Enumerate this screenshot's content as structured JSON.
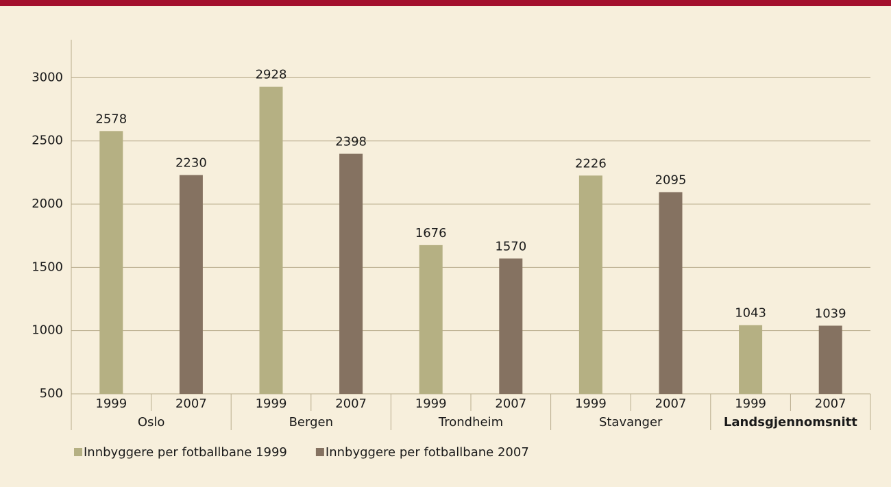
{
  "chart_data": {
    "type": "bar",
    "categories": [
      "Oslo",
      "Bergen",
      "Trondheim",
      "Stavanger",
      "Landsgjennomsnitt"
    ],
    "bold_category_index": 4,
    "series": [
      {
        "name": "Innbyggere per fotballbane 1999",
        "x_label": "1999",
        "color": "#b5b083",
        "values": [
          2578,
          2928,
          1676,
          2226,
          1043
        ]
      },
      {
        "name": "Innbyggere per fotballbane 2007",
        "x_label": "2007",
        "color": "#857261",
        "values": [
          2230,
          2398,
          1570,
          2095,
          1039
        ]
      }
    ],
    "ylim": [
      500,
      3300
    ],
    "yticks": [
      500,
      1000,
      1500,
      2000,
      2500,
      3000
    ],
    "grid": true,
    "legend": "bottom-left"
  }
}
